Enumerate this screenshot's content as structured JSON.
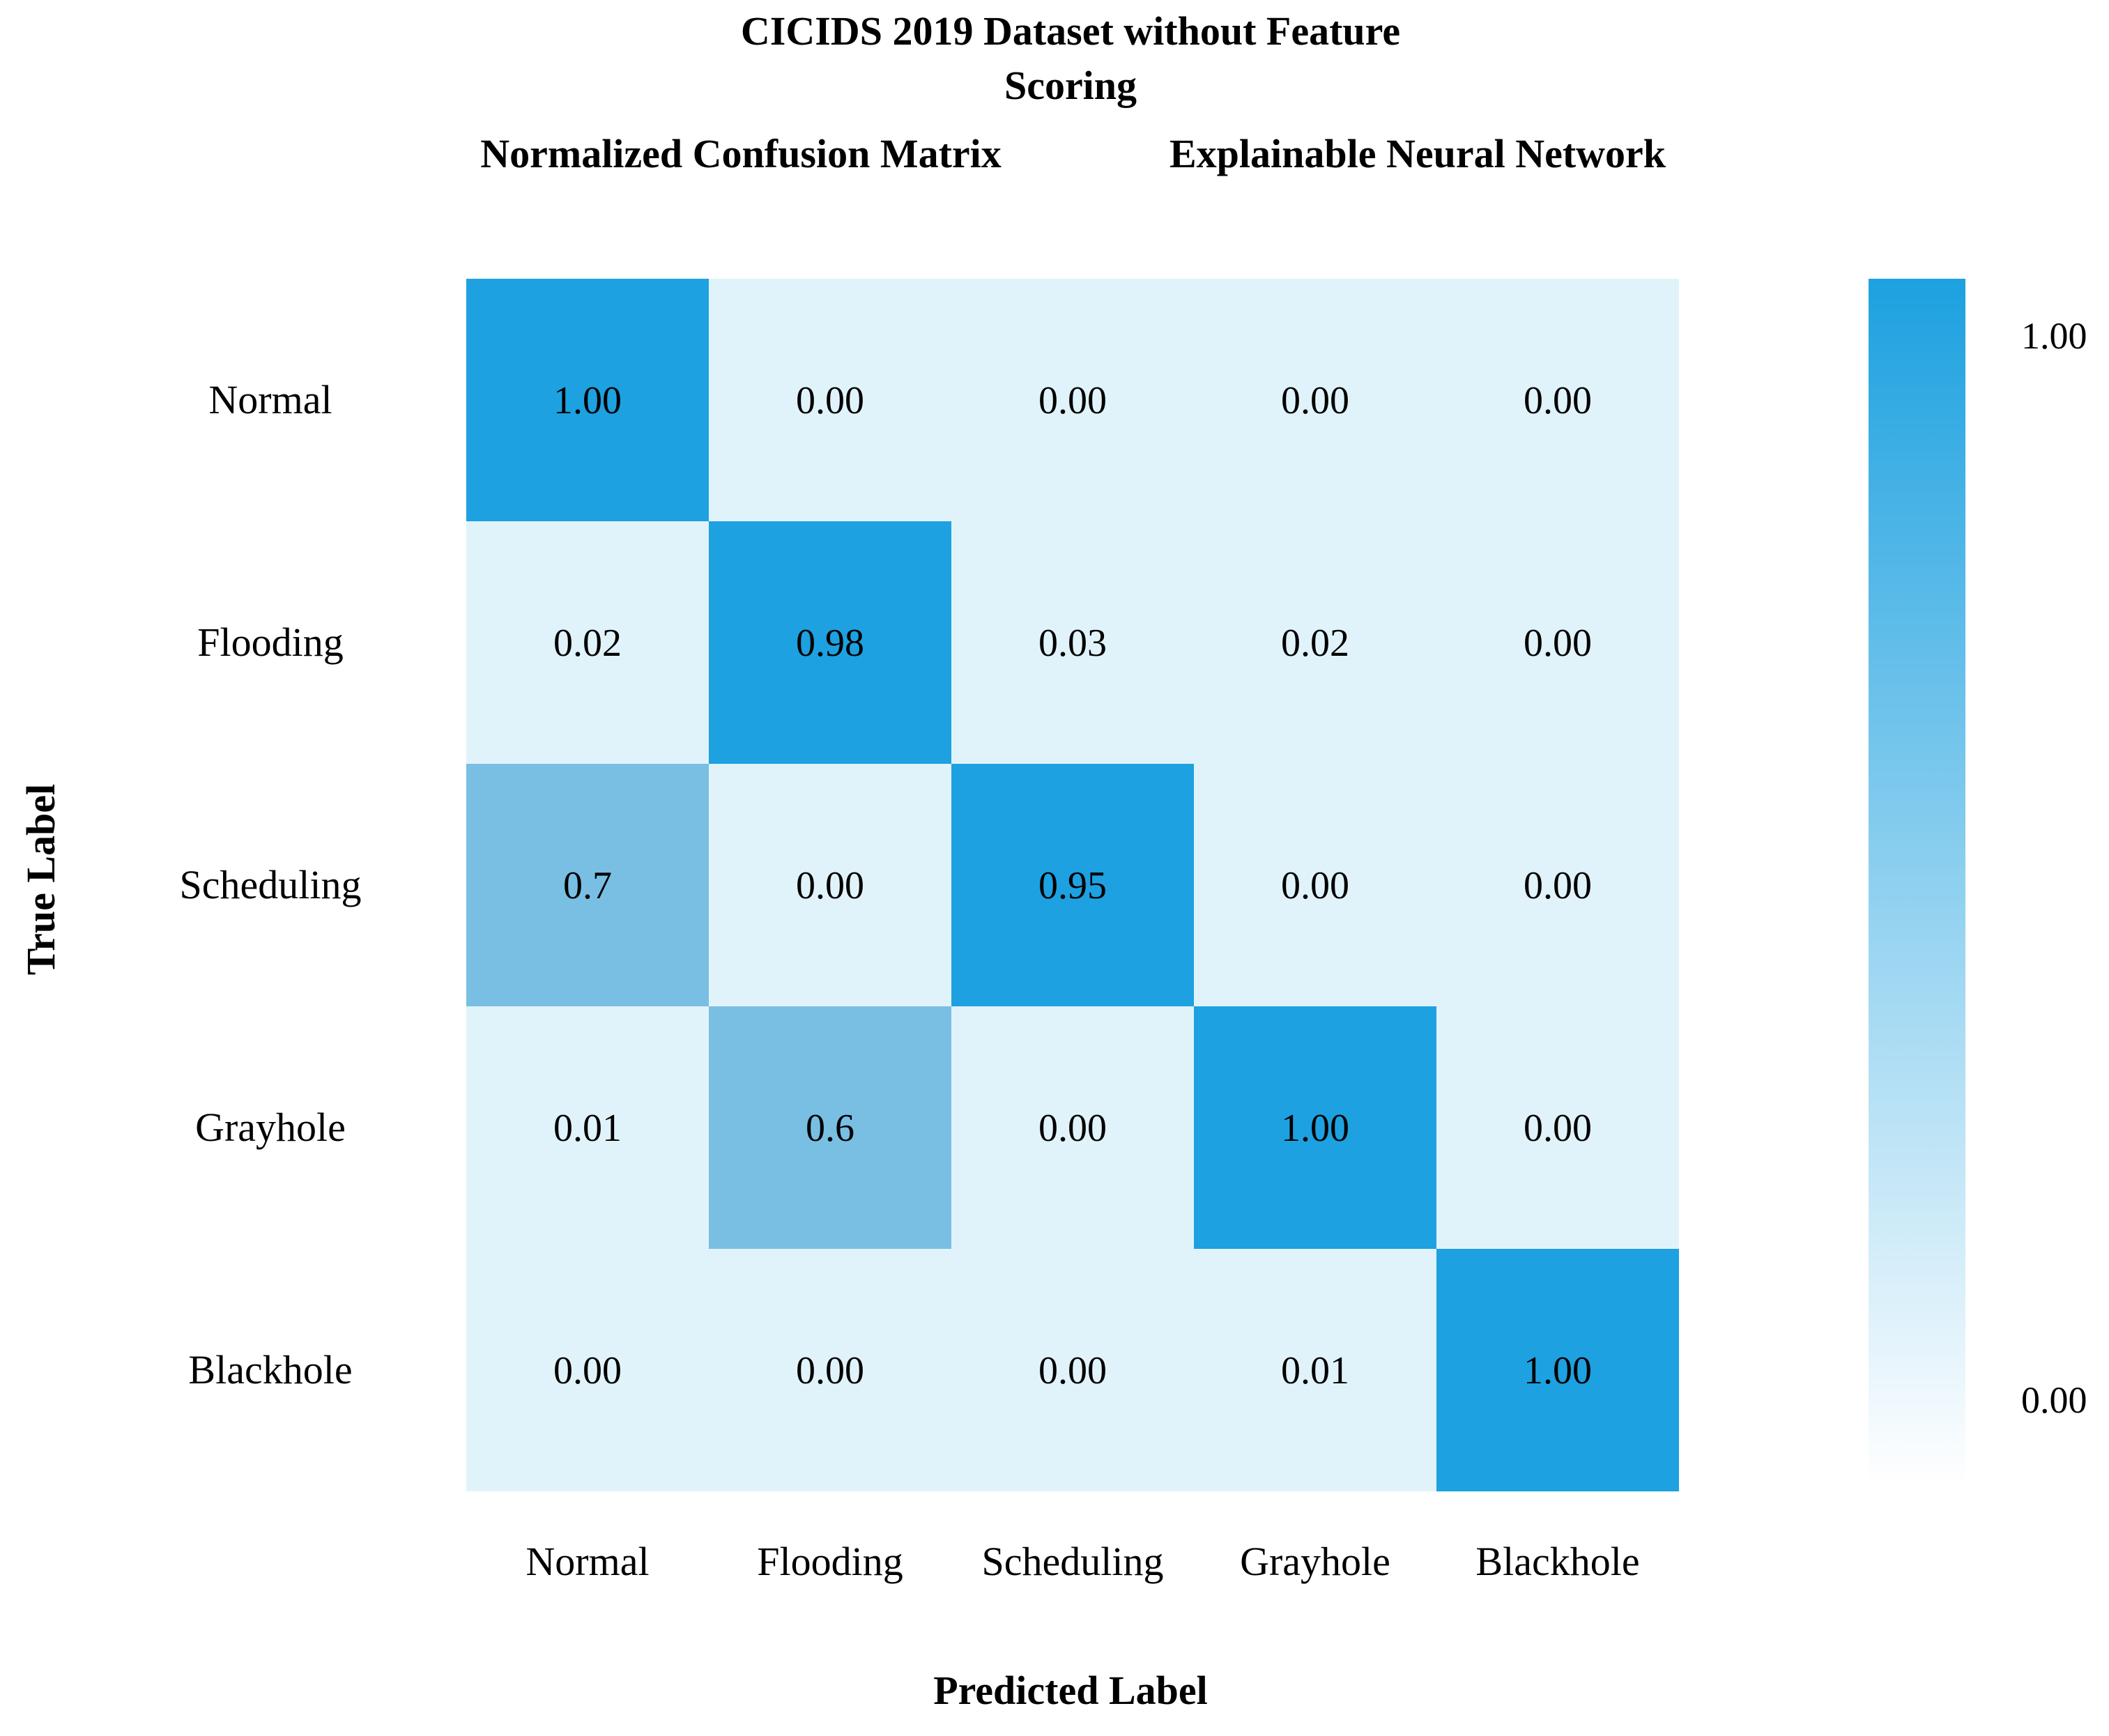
{
  "chart_data": {
    "type": "heatmap",
    "title_lines": [
      "CICIDS 2019 Dataset without Feature",
      "Scoring"
    ],
    "subtitle_left": "Normalized Confusion Matrix",
    "subtitle_right": "Explainable Neural Network",
    "xlabel": "Predicted Label",
    "ylabel": "True Label",
    "x_categories": [
      "Normal",
      "Flooding",
      "Scheduling",
      "Grayhole",
      "Blackhole"
    ],
    "y_categories": [
      "Normal",
      "Flooding",
      "Scheduling",
      "Grayhole",
      "Blackhole"
    ],
    "cells": [
      [
        "1.00",
        "0.00",
        "0.00",
        "0.00",
        "0.00"
      ],
      [
        "0.02",
        "0.98",
        "0.03",
        "0.02",
        "0.00"
      ],
      [
        "0.7",
        "0.00",
        "0.95",
        "0.00",
        "0.00"
      ],
      [
        "0.01",
        "0.6",
        "0.00",
        "1.00",
        "0.00"
      ],
      [
        "0.00",
        "0.00",
        "0.00",
        "0.01",
        "1.00"
      ]
    ],
    "colorbar": {
      "range": [
        0,
        1
      ],
      "tick_labels": [
        "1.00",
        "0.00"
      ],
      "low_color": "#ffffff",
      "high_color": "#1da1e0"
    },
    "colors": {
      "high": "#1da1e0",
      "mid": "#79bfe3",
      "low": "#e1f3fa"
    }
  }
}
